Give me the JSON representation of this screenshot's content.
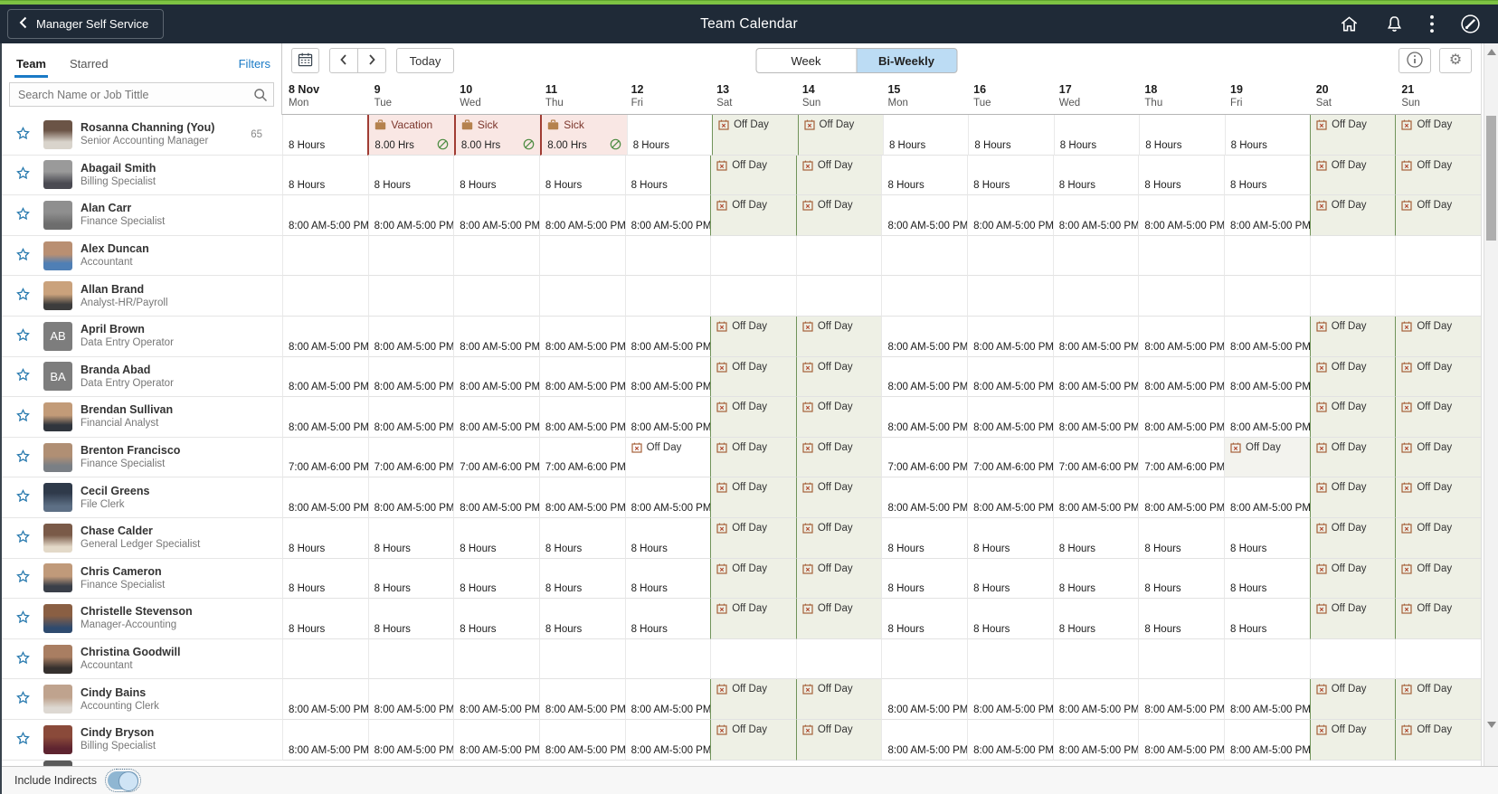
{
  "top_bar": {
    "back_label": "Manager Self Service",
    "title": "Team Calendar",
    "icons": [
      "home-icon",
      "notifications-bell-icon",
      "actions-kebab-icon",
      "navbar-compass-icon"
    ]
  },
  "toolbar": {
    "calendar_icon": "calendar-picker-icon",
    "today_label": "Today",
    "view_toggle": {
      "options": [
        "Week",
        "Bi-Weekly"
      ],
      "selected": "Bi-Weekly"
    },
    "right_icons": [
      "info-icon",
      "settings-gear-icon"
    ]
  },
  "left_panel": {
    "tabs": [
      {
        "label": "Team",
        "active": true
      },
      {
        "label": "Starred",
        "active": false
      }
    ],
    "filters_label": "Filters",
    "search_placeholder": "Search Name or Job Tittle"
  },
  "footer": {
    "include_indirects_label": "Include Indirects",
    "toggle_state": "on"
  },
  "calendar": {
    "dates": [
      {
        "label": "8 Nov",
        "day": "Mon"
      },
      {
        "label": "9",
        "day": "Tue"
      },
      {
        "label": "10",
        "day": "Wed"
      },
      {
        "label": "11",
        "day": "Thu"
      },
      {
        "label": "12",
        "day": "Fri"
      },
      {
        "label": "13",
        "day": "Sat"
      },
      {
        "label": "14",
        "day": "Sun"
      },
      {
        "label": "15",
        "day": "Mon"
      },
      {
        "label": "16",
        "day": "Tue"
      },
      {
        "label": "17",
        "day": "Wed"
      },
      {
        "label": "18",
        "day": "Thu"
      },
      {
        "label": "19",
        "day": "Fri"
      },
      {
        "label": "20",
        "day": "Sat"
      },
      {
        "label": "21",
        "day": "Sun"
      }
    ],
    "cell_text": {
      "off_day": "Off Day",
      "hours": "8 Hours",
      "shift_8_5": "8:00 AM-5:00 PM",
      "shift_7_6": "7:00 AM-6:00 PM",
      "vacation": "Vacation",
      "sick": "Sick",
      "absence_hours": "8.00 Hrs"
    },
    "schedule_legend": {
      "H": "8 Hours",
      "T": "8:00 AM-5:00 PM",
      "S": "7:00 AM-6:00 PM",
      "O": "Off Day (weekend highlight)",
      "P": "Off Day (plain)",
      "G": "Off Day (gray)",
      "V": "Vacation 8.00 Hrs approved",
      "K": "Sick 8.00 Hrs approved",
      "-": "empty"
    }
  },
  "employees": [
    {
      "name": "Rosanna Channing (You)",
      "title": "Senior Accounting Manager",
      "badge": "65",
      "avatar": "photo",
      "schedule": [
        "H",
        "V",
        "K",
        "K",
        "H",
        "O",
        "O",
        "H",
        "H",
        "H",
        "H",
        "H",
        "O",
        "O"
      ]
    },
    {
      "name": "Abagail Smith",
      "title": "Billing Specialist",
      "avatar": "photo",
      "schedule": [
        "H",
        "H",
        "H",
        "H",
        "H",
        "O",
        "O",
        "H",
        "H",
        "H",
        "H",
        "H",
        "O",
        "O"
      ]
    },
    {
      "name": "Alan Carr",
      "title": "Finance Specialist",
      "avatar": "photo",
      "schedule": [
        "T",
        "T",
        "T",
        "T",
        "T",
        "O",
        "O",
        "T",
        "T",
        "T",
        "T",
        "T",
        "O",
        "O"
      ]
    },
    {
      "name": "Alex Duncan",
      "title": "Accountant",
      "avatar": "photo",
      "schedule": [
        "-",
        "-",
        "-",
        "-",
        "-",
        "-",
        "-",
        "-",
        "-",
        "-",
        "-",
        "-",
        "-",
        "-"
      ]
    },
    {
      "name": "Allan Brand",
      "title": "Analyst-HR/Payroll",
      "avatar": "photo",
      "schedule": [
        "-",
        "-",
        "-",
        "-",
        "-",
        "-",
        "-",
        "-",
        "-",
        "-",
        "-",
        "-",
        "-",
        "-"
      ]
    },
    {
      "name": "April Brown",
      "title": "Data Entry Operator",
      "avatar": "AB",
      "schedule": [
        "T",
        "T",
        "T",
        "T",
        "T",
        "O",
        "O",
        "T",
        "T",
        "T",
        "T",
        "T",
        "O",
        "O"
      ]
    },
    {
      "name": "Branda Abad",
      "title": "Data Entry Operator",
      "avatar": "BA",
      "schedule": [
        "T",
        "T",
        "T",
        "T",
        "T",
        "O",
        "O",
        "T",
        "T",
        "T",
        "T",
        "T",
        "O",
        "O"
      ]
    },
    {
      "name": "Brendan Sullivan",
      "title": "Financial Analyst",
      "avatar": "photo",
      "schedule": [
        "T",
        "T",
        "T",
        "T",
        "T",
        "O",
        "O",
        "T",
        "T",
        "T",
        "T",
        "T",
        "O",
        "O"
      ]
    },
    {
      "name": "Brenton Francisco",
      "title": "Finance Specialist",
      "avatar": "photo",
      "schedule": [
        "S",
        "S",
        "S",
        "S",
        "P",
        "O",
        "O",
        "S",
        "S",
        "S",
        "S",
        "G",
        "O",
        "O"
      ]
    },
    {
      "name": "Cecil Greens",
      "title": "File Clerk",
      "avatar": "photo",
      "schedule": [
        "T",
        "T",
        "T",
        "T",
        "T",
        "O",
        "O",
        "T",
        "T",
        "T",
        "T",
        "T",
        "O",
        "O"
      ]
    },
    {
      "name": "Chase Calder",
      "title": "General Ledger Specialist",
      "avatar": "photo",
      "schedule": [
        "H",
        "H",
        "H",
        "H",
        "H",
        "O",
        "O",
        "H",
        "H",
        "H",
        "H",
        "H",
        "O",
        "O"
      ]
    },
    {
      "name": "Chris Cameron",
      "title": "Finance Specialist",
      "avatar": "photo",
      "schedule": [
        "H",
        "H",
        "H",
        "H",
        "H",
        "O",
        "O",
        "H",
        "H",
        "H",
        "H",
        "H",
        "O",
        "O"
      ]
    },
    {
      "name": "Christelle Stevenson",
      "title": "Manager-Accounting",
      "avatar": "photo",
      "schedule": [
        "H",
        "H",
        "H",
        "H",
        "H",
        "O",
        "O",
        "H",
        "H",
        "H",
        "H",
        "H",
        "O",
        "O"
      ]
    },
    {
      "name": "Christina Goodwill",
      "title": "Accountant",
      "avatar": "photo",
      "schedule": [
        "-",
        "-",
        "-",
        "-",
        "-",
        "-",
        "-",
        "-",
        "-",
        "-",
        "-",
        "-",
        "-",
        "-"
      ]
    },
    {
      "name": "Cindy Bains",
      "title": "Accounting Clerk",
      "avatar": "photo",
      "schedule": [
        "T",
        "T",
        "T",
        "T",
        "T",
        "O",
        "O",
        "T",
        "T",
        "T",
        "T",
        "T",
        "O",
        "O"
      ]
    },
    {
      "name": "Cindy Bryson",
      "title": "Billing Specialist",
      "avatar": "photo",
      "schedule": [
        "T",
        "T",
        "T",
        "T",
        "T",
        "O",
        "O",
        "T",
        "T",
        "T",
        "T",
        "T",
        "O",
        "O"
      ]
    }
  ],
  "colors": {
    "brand_green_strip": "#7dc243",
    "header_navy": "#1f2a37",
    "accent_blue": "#1a7ac6",
    "selected_toggle_blue": "#bcdcf4",
    "absence_bg": "#f9e7e4",
    "absence_border_red": "#a03c33",
    "offday_bg": "#eef0e5",
    "offday_border_green": "#71945a",
    "approved_icon_green": "#4c8b41"
  }
}
